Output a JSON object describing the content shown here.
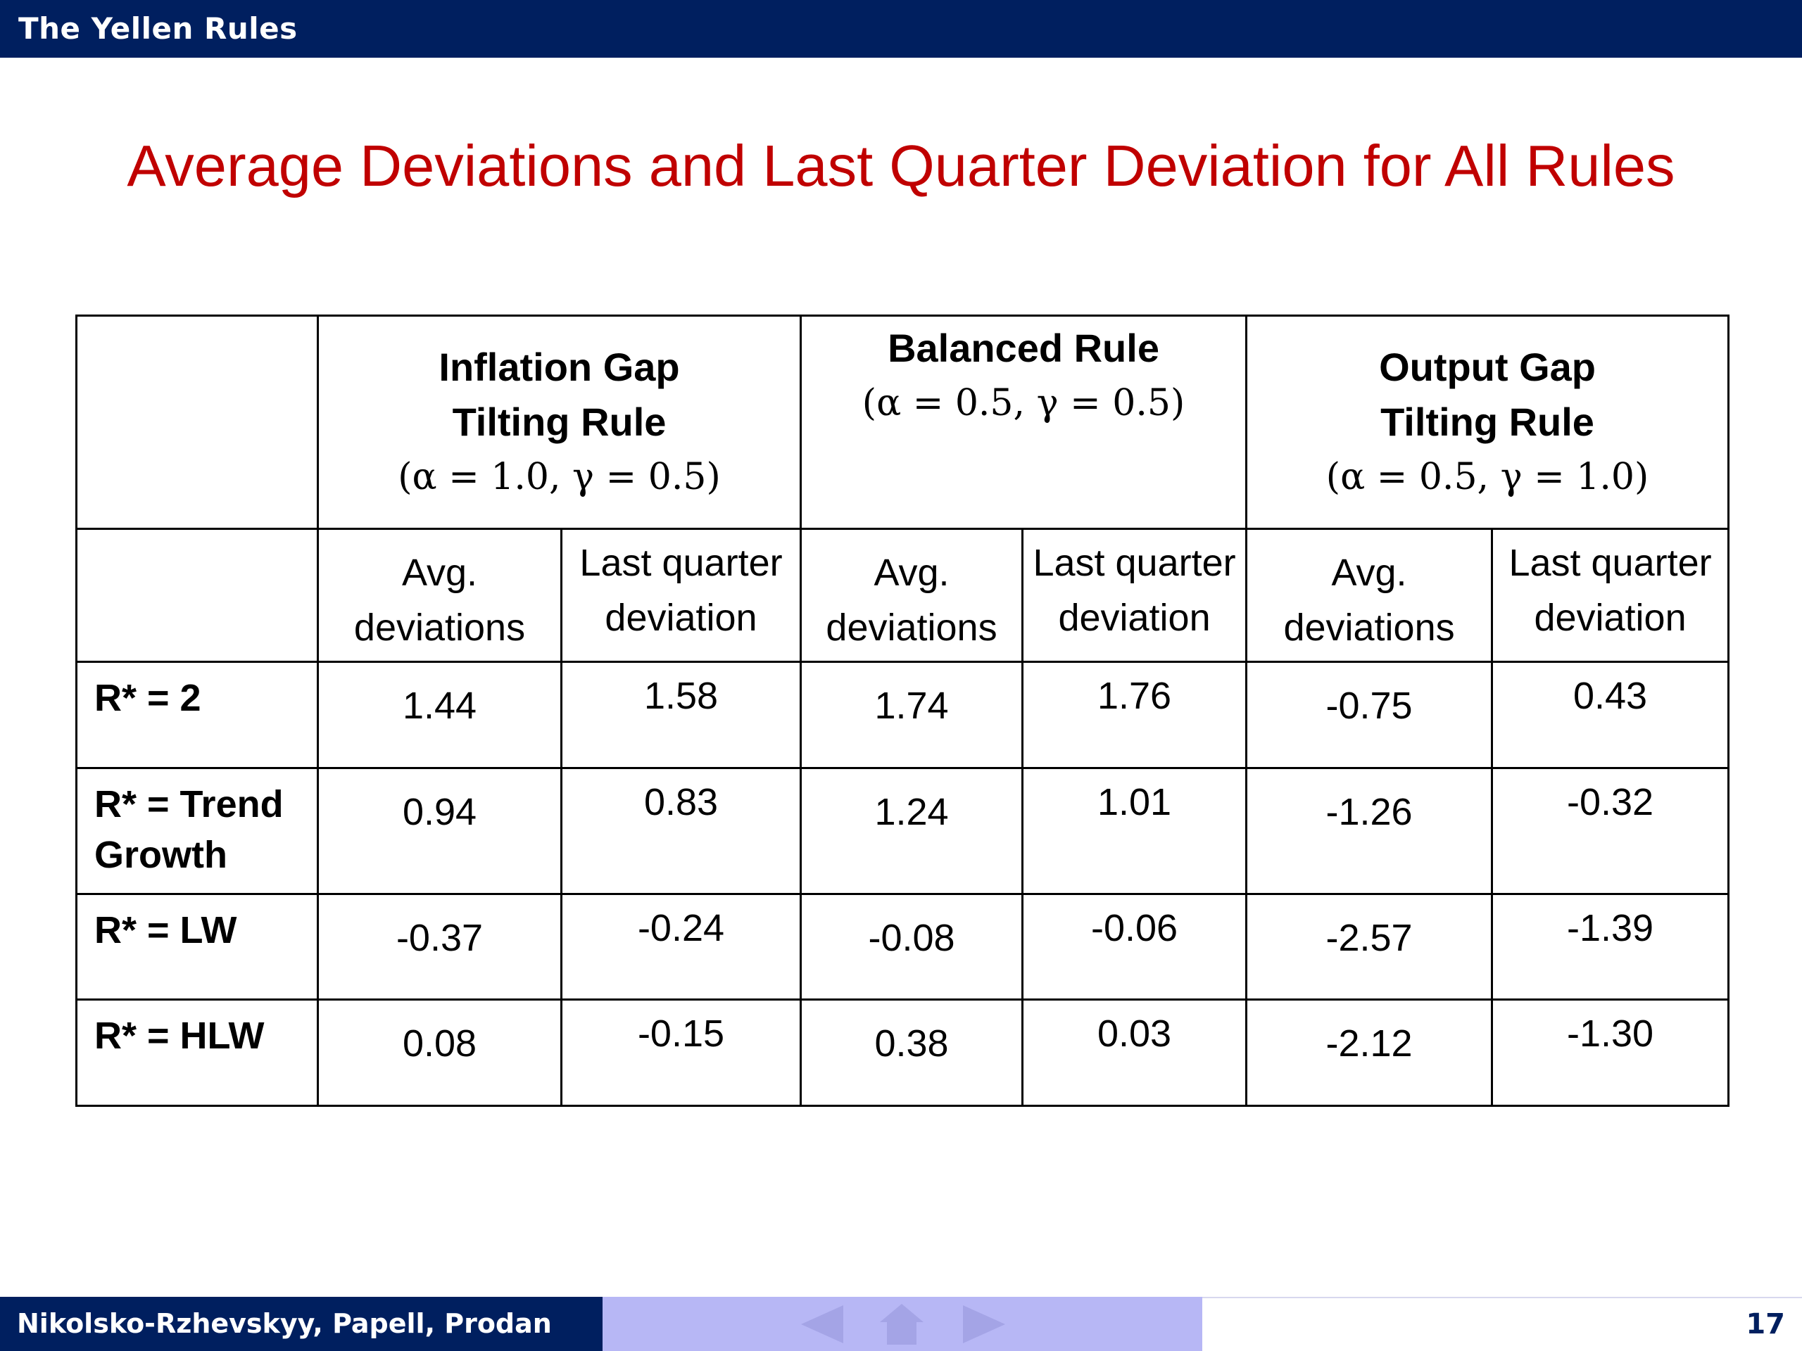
{
  "header": {
    "title": "The Yellen Rules"
  },
  "slide": {
    "title": "Average Deviations and Last Quarter Deviation for All Rules"
  },
  "table": {
    "groups": [
      {
        "name_line1": "Inflation Gap",
        "name_line2": "Tilting Rule",
        "params": "(α = 1.0, γ = 0.5)"
      },
      {
        "name_line1": "Balanced Rule",
        "name_line2": "",
        "params": "(α = 0.5, γ = 0.5)"
      },
      {
        "name_line1": "Output Gap",
        "name_line2": "Tilting Rule",
        "params": "(α = 0.5, γ = 1.0)"
      }
    ],
    "subheaders": {
      "avg_line1": "Avg.",
      "avg_line2": "deviations",
      "last_line1": "Last quarter",
      "last_line2": "deviation"
    },
    "rows": [
      {
        "label_line1": "R* = 2",
        "label_line2": "",
        "values": [
          "1.44",
          "1.58",
          "1.74",
          "1.76",
          "-0.75",
          "0.43"
        ]
      },
      {
        "label_line1": "R* = Trend",
        "label_line2": "Growth",
        "values": [
          "0.94",
          "0.83",
          "1.24",
          "1.01",
          "-1.26",
          "-0.32"
        ]
      },
      {
        "label_line1": "R* = LW",
        "label_line2": "",
        "values": [
          "-0.37",
          "-0.24",
          "-0.08",
          "-0.06",
          "-2.57",
          "-1.39"
        ]
      },
      {
        "label_line1": "R* = HLW",
        "label_line2": "",
        "values": [
          "0.08",
          "-0.15",
          "0.38",
          "0.03",
          "-2.12",
          "-1.30"
        ]
      }
    ]
  },
  "footer": {
    "authors": "Nikolsko-Rzhevskyy, Papell, Prodan",
    "page_number": "17",
    "nav_icons": [
      "prev-arrow-icon",
      "home-icon",
      "next-arrow-icon"
    ]
  },
  "colors": {
    "header_bg": "#001f5f",
    "title_red": "#c00000",
    "nav_bg": "#b7b7f5"
  }
}
